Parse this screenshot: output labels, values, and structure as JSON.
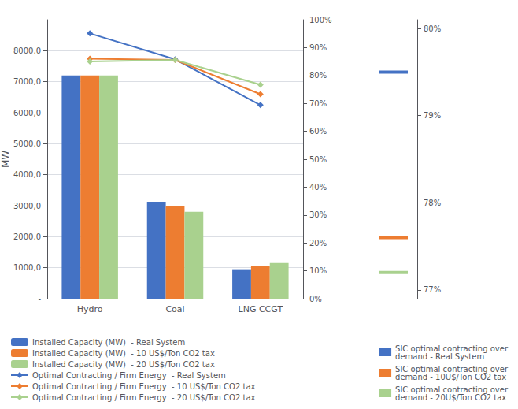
{
  "chart_data": [
    {
      "type": "bar",
      "categories": [
        "Hydro",
        "Coal",
        "LNG CCGT"
      ],
      "ylabel": "MW",
      "ylim": [
        0,
        9000
      ],
      "yticks": [
        {
          "value": 0,
          "label": "-"
        },
        {
          "value": 1000,
          "label": "1000,0"
        },
        {
          "value": 2000,
          "label": "2000,0"
        },
        {
          "value": 3000,
          "label": "3000,0"
        },
        {
          "value": 4000,
          "label": "4000,0"
        },
        {
          "value": 5000,
          "label": "5000,0"
        },
        {
          "value": 6000,
          "label": "6000,0"
        },
        {
          "value": 7000,
          "label": "7000,0"
        },
        {
          "value": 8000,
          "label": "8000,0"
        }
      ],
      "y2lim": [
        0,
        1.0
      ],
      "y2ticks": [
        {
          "value": 0,
          "label": "0%"
        },
        {
          "value": 0.1,
          "label": "10%"
        },
        {
          "value": 0.2,
          "label": "20%"
        },
        {
          "value": 0.3,
          "label": "30%"
        },
        {
          "value": 0.4,
          "label": "40%"
        },
        {
          "value": 0.5,
          "label": "50%"
        },
        {
          "value": 0.6,
          "label": "60%"
        },
        {
          "value": 0.7,
          "label": "70%"
        },
        {
          "value": 0.8,
          "label": "80%"
        },
        {
          "value": 0.9,
          "label": "90%"
        },
        {
          "value": 1.0,
          "label": "100%"
        }
      ],
      "grid": true,
      "legend": "lower left",
      "series": [
        {
          "name": "Installed Capacity (MW)  - Real System",
          "type": "bar",
          "color": "#4472C4",
          "values": [
            7200,
            3130,
            950
          ]
        },
        {
          "name": "Installed Capacity (MW)  - 10 US$/Ton CO2 tax",
          "type": "bar",
          "color": "#ED7D31",
          "values": [
            7200,
            3000,
            1050
          ]
        },
        {
          "name": "Installed Capacity (MW)  - 20 US$/Ton CO2 tax",
          "type": "bar",
          "color": "#A9D18E",
          "values": [
            7200,
            2800,
            1150
          ]
        },
        {
          "name": "Optimal Contracting / Firm Energy  - Real System",
          "type": "line",
          "marker": "diamond",
          "axis": "y2",
          "color": "#4472C4",
          "values": [
            0.951,
            0.858,
            0.694
          ]
        },
        {
          "name": "Optimal Contracting / Firm Energy  - 10 US$/Ton CO2 tax",
          "type": "line",
          "marker": "diamond",
          "axis": "y2",
          "color": "#ED7D31",
          "values": [
            0.86,
            0.856,
            0.733
          ]
        },
        {
          "name": "Optimal Contracting / Firm Energy  - 20 US$/Ton CO2 tax",
          "type": "line",
          "marker": "diamond",
          "axis": "y2",
          "color": "#A9D18E",
          "values": [
            0.85,
            0.856,
            0.767
          ]
        }
      ]
    },
    {
      "type": "scatter",
      "marker": "rect",
      "categories": [
        null
      ],
      "ylim": [
        0.769,
        0.801
      ],
      "yticks": [
        {
          "value": 0.77,
          "label": "77%"
        },
        {
          "value": 0.78,
          "label": "78%"
        },
        {
          "value": 0.79,
          "label": "79%"
        },
        {
          "value": 0.8,
          "label": "80%"
        }
      ],
      "tick_labels": "y",
      "grid": false,
      "legend": "lower right",
      "series": [
        {
          "name": "SIC optimal contracting over\ndemand - Real System",
          "color": "#4472C4",
          "values": [
            0.795
          ]
        },
        {
          "name": "SIC optimal contracting over\ndemand - 10U$/Ton CO2 tax",
          "color": "#ED7D31",
          "values": [
            0.776
          ]
        },
        {
          "name": "SIC optimal contracting over\ndemand - 20U$/Ton CO2 tax",
          "color": "#A9D18E",
          "values": [
            0.772
          ]
        }
      ]
    }
  ]
}
